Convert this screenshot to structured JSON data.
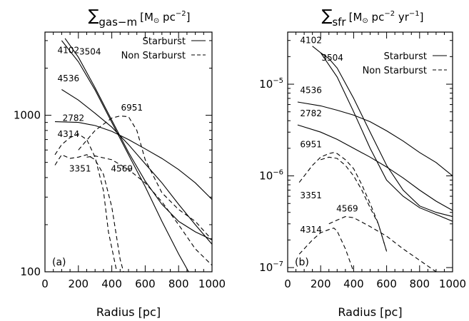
{
  "chart_data": [
    {
      "panel_label": "(a)",
      "title_symbol": "∑",
      "title_sub": "gas−m",
      "title_units": "[M",
      "title_units_sun": "⊙",
      "title_units_rest": " pc",
      "title_units_exp": "−2",
      "title_units_close": "]",
      "type": "line",
      "xlabel": "Radius [pc]",
      "ylabel": "",
      "xlim": [
        0,
        1000
      ],
      "ylim": [
        100,
        3400
      ],
      "yscale": "log",
      "x_ticks": [
        "0",
        "200",
        "400",
        "600",
        "800",
        "1000"
      ],
      "y_ticks": [
        {
          "value": 100,
          "label": "100"
        },
        {
          "value": 1000,
          "label": "1000"
        }
      ],
      "legend": {
        "position": "top-right",
        "entries": [
          {
            "label": "Starburst",
            "style": "solid"
          },
          {
            "label": "Non Starburst",
            "style": "dashed"
          }
        ]
      },
      "series": [
        {
          "name": "4102",
          "style": "solid",
          "label_at": [
            75,
            2600
          ],
          "x": [
            100,
            200,
            300,
            400,
            500,
            600,
            700,
            800,
            860
          ],
          "y": [
            3000,
            2200,
            1450,
            900,
            560,
            350,
            210,
            130,
            100
          ]
        },
        {
          "name": "3504",
          "style": "solid",
          "label_at": [
            205,
            2550
          ],
          "x": [
            120,
            200,
            300,
            400,
            500,
            600,
            700,
            800,
            900,
            1000
          ],
          "y": [
            3100,
            2350,
            1500,
            930,
            580,
            380,
            270,
            210,
            180,
            160
          ]
        },
        {
          "name": "4536",
          "style": "solid",
          "label_at": [
            75,
            1720
          ],
          "x": [
            100,
            200,
            300,
            400,
            500,
            600,
            700,
            800,
            900,
            1000
          ],
          "y": [
            1460,
            1250,
            1030,
            840,
            650,
            490,
            370,
            270,
            200,
            150
          ]
        },
        {
          "name": "2782",
          "style": "solid",
          "label_at": [
            105,
            960
          ],
          "x": [
            60,
            200,
            300,
            400,
            500,
            600,
            700,
            800,
            900,
            1000
          ],
          "y": [
            910,
            900,
            860,
            790,
            700,
            610,
            530,
            450,
            370,
            290
          ]
        },
        {
          "name": "6951",
          "style": "dashed",
          "label_at": [
            455,
            1120
          ],
          "x": [
            200,
            300,
            400,
            450,
            500,
            550,
            600,
            700,
            800,
            900,
            1000
          ],
          "y": [
            600,
            800,
            960,
            990,
            980,
            800,
            520,
            320,
            250,
            210,
            160
          ]
        },
        {
          "name": "4314",
          "style": "dashed",
          "label_at": [
            75,
            760
          ],
          "x": [
            60,
            100,
            150,
            200,
            250,
            300,
            350,
            380,
            430
          ],
          "y": [
            560,
            650,
            720,
            760,
            700,
            540,
            330,
            180,
            100
          ]
        },
        {
          "name": "3351",
          "style": "dashed",
          "label_at": [
            145,
            455
          ],
          "x": [
            60,
            100,
            150,
            200,
            250,
            300,
            350,
            400,
            450,
            470
          ],
          "y": [
            480,
            560,
            530,
            540,
            560,
            520,
            420,
            260,
            120,
            100
          ]
        },
        {
          "name": "4569",
          "style": "dashed",
          "label_at": [
            395,
            455
          ],
          "x": [
            250,
            300,
            400,
            500,
            600,
            700,
            800,
            900,
            1000
          ],
          "y": [
            540,
            550,
            520,
            450,
            370,
            280,
            200,
            140,
            110
          ]
        }
      ]
    },
    {
      "panel_label": "(b)",
      "title_symbol": "∑",
      "title_sub": "sfr",
      "title_units": "[M",
      "title_units_sun": "⊙",
      "title_units_rest": " pc",
      "title_units_exp": "−2",
      "title_units_rest2": " yr",
      "title_units_exp2": "−1",
      "title_units_close": "]",
      "type": "line",
      "xlabel": "Radius [pc]",
      "ylabel": "",
      "xlim": [
        0,
        1000
      ],
      "ylim": [
        9e-08,
        3.7e-05
      ],
      "yscale": "log",
      "x_ticks": [
        "0",
        "200",
        "400",
        "600",
        "800",
        "1000"
      ],
      "y_ticks": [
        {
          "value": 1e-07,
          "base": "10",
          "exp": "−7"
        },
        {
          "value": 1e-06,
          "base": "10",
          "exp": "−6"
        },
        {
          "value": 1e-05,
          "base": "10",
          "exp": "−5"
        }
      ],
      "legend": {
        "position": "top-right",
        "entries": [
          {
            "label": "Starburst",
            "style": "solid"
          },
          {
            "label": "Non Starburst",
            "style": "dashed"
          }
        ]
      },
      "series": [
        {
          "name": "4102",
          "style": "solid",
          "label_at": [
            75,
            3e-05
          ],
          "x": [
            150,
            200,
            300,
            400,
            500,
            600,
            700,
            800,
            900,
            1000
          ],
          "y": [
            2.6e-05,
            2.2e-05,
            1.2e-05,
            5e-06,
            2e-06,
            9e-07,
            6e-07,
            4.5e-07,
            3.8e-07,
            3.2e-07
          ]
        },
        {
          "name": "3504",
          "style": "solid",
          "label_at": [
            205,
            1.95e-05
          ],
          "x": [
            200,
            250,
            300,
            400,
            500,
            600,
            700,
            800,
            900,
            1000
          ],
          "y": [
            2.2e-05,
            1.9e-05,
            1.5e-05,
            7e-06,
            3e-06,
            1.3e-06,
            7e-07,
            4.7e-07,
            4e-07,
            3.6e-07
          ]
        },
        {
          "name": "4536",
          "style": "solid",
          "label_at": [
            75,
            8.6e-06
          ],
          "x": [
            60,
            200,
            300,
            400,
            500,
            600,
            700,
            800,
            900,
            1000
          ],
          "y": [
            6.4e-06,
            5.8e-06,
            5.2e-06,
            4.6e-06,
            3.9e-06,
            3.1e-06,
            2.4e-06,
            1.8e-06,
            1.4e-06,
            1e-06
          ]
        },
        {
          "name": "2782",
          "style": "solid",
          "label_at": [
            75,
            4.8e-06
          ],
          "x": [
            60,
            200,
            300,
            400,
            500,
            600,
            700,
            800,
            900,
            1000
          ],
          "y": [
            3.6e-06,
            3e-06,
            2.5e-06,
            2e-06,
            1.6e-06,
            1.25e-06,
            9.5e-07,
            7e-07,
            5.3e-07,
            4.2e-07
          ]
        },
        {
          "name": "6951",
          "style": "dashed",
          "label_at": [
            75,
            2.2e-06
          ],
          "x": [
            70,
            150,
            200,
            250,
            280,
            300,
            350,
            400,
            450,
            500,
            550,
            600
          ],
          "y": [
            8.5e-07,
            1.3e-06,
            1.6e-06,
            1.75e-06,
            1.8e-06,
            1.75e-06,
            1.5e-06,
            1.2e-06,
            8e-07,
            5e-07,
            3e-07,
            1.5e-07
          ]
        },
        {
          "name": "3351",
          "style": "dashed",
          "label_at": [
            75,
            6.1e-07
          ],
          "x": [
            200,
            250,
            300,
            350,
            400,
            450,
            500,
            550,
            600
          ],
          "y": [
            1.5e-06,
            1.6e-06,
            1.55e-06,
            1.3e-06,
            1e-06,
            7e-07,
            4.5e-07,
            3e-07,
            1.5e-07
          ]
        },
        {
          "name": "4569",
          "style": "dashed",
          "label_at": [
            295,
            4.4e-07
          ],
          "x": [
            250,
            300,
            350,
            400,
            500,
            600,
            700,
            800,
            900
          ],
          "y": [
            3e-07,
            3.3e-07,
            3.6e-07,
            3.5e-07,
            2.8e-07,
            2.2e-07,
            1.6e-07,
            1.2e-07,
            9e-08
          ]
        },
        {
          "name": "4314",
          "style": "dashed",
          "label_at": [
            75,
            2.6e-07
          ],
          "x": [
            70,
            150,
            200,
            250,
            280,
            300,
            350,
            400
          ],
          "y": [
            1.4e-07,
            2e-07,
            2.4e-07,
            2.6e-07,
            2.7e-07,
            2.5e-07,
            1.6e-07,
            9e-08
          ]
        }
      ]
    }
  ]
}
